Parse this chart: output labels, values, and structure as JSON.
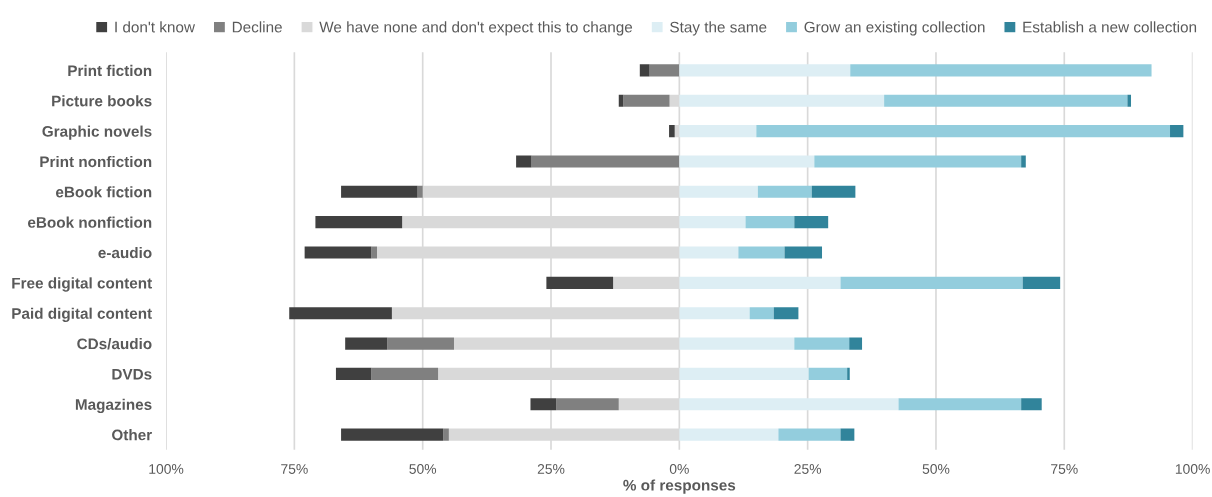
{
  "chart_data": {
    "type": "bar",
    "orientation": "horizontal",
    "stacked": true,
    "xlabel": "% of responses",
    "categories": [
      "Print fiction",
      "Picture books",
      "Graphic novels",
      "Print nonfiction",
      "eBook fiction",
      "eBook nonfiction",
      "e-audio",
      "Free digital content",
      "Paid digital content",
      "CDs/audio",
      "DVDs",
      "Magazines",
      "Other"
    ],
    "series": [
      {
        "name": "We have none and don't expect this to change",
        "color": "#d9d9d9",
        "values": [
          0,
          -1.9,
          -0.9,
          0,
          -50.0,
          -54.0,
          -58.9,
          -12.9,
          -56.0,
          -43.9,
          -47.0,
          -11.8,
          -44.9
        ]
      },
      {
        "name": "Decline",
        "color": "#808080",
        "values": [
          -5.8,
          -9.0,
          0,
          -28.8,
          -1.0,
          0,
          -1.1,
          0,
          0,
          -13.0,
          -13.0,
          -12.2,
          -1.1
        ]
      },
      {
        "name": "I don't know",
        "color": "#404040",
        "values": [
          -1.9,
          -0.9,
          -1.1,
          -3.0,
          -14.9,
          -16.9,
          -13.0,
          -13.0,
          -20.0,
          -8.2,
          -6.9,
          -5.0,
          -19.9
        ]
      },
      {
        "name": "Stay the same",
        "color": "#ddeef4",
        "values": [
          33.3,
          39.9,
          15.0,
          26.3,
          15.3,
          12.9,
          11.5,
          31.4,
          13.7,
          22.4,
          25.2,
          42.7,
          19.3
        ]
      },
      {
        "name": "Grow an existing collection",
        "color": "#93cddd",
        "values": [
          58.7,
          47.4,
          80.6,
          40.3,
          10.5,
          9.5,
          9.0,
          35.5,
          4.7,
          10.7,
          7.5,
          23.9,
          12.1
        ]
      },
      {
        "name": "Establish a new collection",
        "color": "#31849b",
        "values": [
          0,
          0.7,
          2.6,
          0.9,
          8.5,
          6.6,
          7.3,
          7.3,
          4.8,
          2.5,
          0.5,
          4.0,
          2.7
        ]
      }
    ],
    "xlim": [
      -100,
      100
    ],
    "xticks": [
      {
        "value": -100,
        "label": "100%"
      },
      {
        "value": -75,
        "label": "75%"
      },
      {
        "value": -50,
        "label": "50%"
      },
      {
        "value": -25,
        "label": "25%"
      },
      {
        "value": 0,
        "label": "0%"
      },
      {
        "value": 25,
        "label": "25%"
      },
      {
        "value": 50,
        "label": "50%"
      },
      {
        "value": 75,
        "label": "75%"
      },
      {
        "value": 100,
        "label": "100%"
      }
    ],
    "grid": "x",
    "legend": "top"
  }
}
